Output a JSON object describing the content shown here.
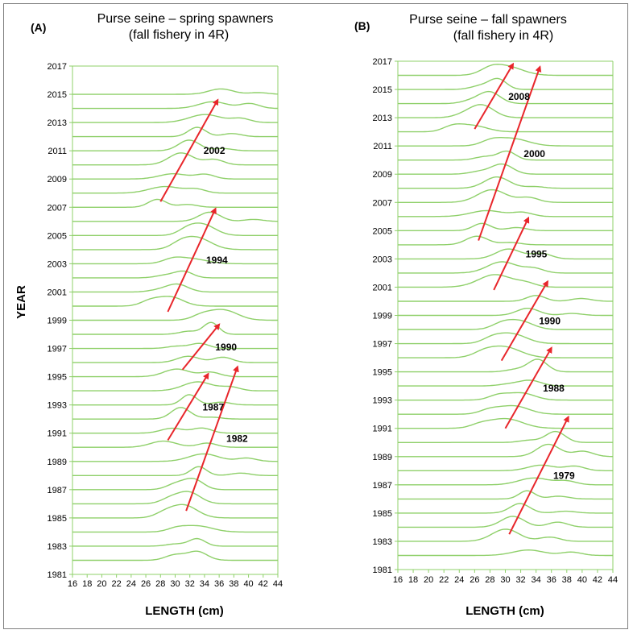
{
  "colors": {
    "ridge": "#8fd06a",
    "arrow": "#e8262b",
    "frame": "#7f7f7f",
    "text": "#000000"
  },
  "yaxis_label": "YEAR",
  "chart_data": [
    {
      "type": "ridgeline",
      "panel": "(A)",
      "title_line1": "Purse seine – spring spawners",
      "title_line2": "(fall fishery in 4R)",
      "xlabel": "LENGTH (cm)",
      "xlim": [
        16,
        44
      ],
      "xticks": [
        "16",
        "18",
        "20",
        "22",
        "24",
        "26",
        "28",
        "30",
        "32",
        "34",
        "36",
        "38",
        "40",
        "42",
        "44"
      ],
      "ylim": [
        1981,
        2017
      ],
      "yticks": [
        "1981",
        "1983",
        "1985",
        "1987",
        "1989",
        "1991",
        "1993",
        "1995",
        "1997",
        "1999",
        "2001",
        "2003",
        "2005",
        "2007",
        "2009",
        "2011",
        "2013",
        "2015",
        "2017"
      ],
      "years": [
        1982,
        1983,
        1984,
        1985,
        1986,
        1987,
        1988,
        1989,
        1990,
        1991,
        1992,
        1993,
        1994,
        1995,
        1996,
        1997,
        1998,
        1999,
        2000,
        2001,
        2002,
        2003,
        2004,
        2005,
        2006,
        2007,
        2008,
        2009,
        2010,
        2011,
        2012,
        2013,
        2014,
        2015
      ],
      "cohorts": [
        {
          "label": "1982",
          "start": [
            31.5,
            1985.5
          ],
          "end": [
            38.5,
            1995.7
          ]
        },
        {
          "label": "1987",
          "start": [
            29,
            1990.5
          ],
          "end": [
            34.5,
            1995.2
          ]
        },
        {
          "label": "1990",
          "start": [
            31,
            1995.5
          ],
          "end": [
            36,
            1998.7
          ]
        },
        {
          "label": "1994",
          "start": [
            29,
            1999.6
          ],
          "end": [
            35.5,
            2006.9
          ]
        },
        {
          "label": "2002",
          "start": [
            28,
            2007.4
          ],
          "end": [
            35.8,
            2014.6
          ]
        }
      ]
    },
    {
      "type": "ridgeline",
      "panel": "(B)",
      "title_line1": "Purse seine – fall spawners",
      "title_line2": "(fall fishery in 4R)",
      "xlabel": "LENGTH (cm)",
      "xlim": [
        16,
        44
      ],
      "xticks": [
        "16",
        "18",
        "20",
        "22",
        "24",
        "26",
        "28",
        "30",
        "32",
        "34",
        "36",
        "38",
        "40",
        "42",
        "44"
      ],
      "ylim": [
        1981,
        2017
      ],
      "yticks": [
        "1981",
        "1983",
        "1985",
        "1987",
        "1989",
        "1991",
        "1993",
        "1995",
        "1997",
        "1999",
        "2001",
        "2003",
        "2005",
        "2007",
        "2009",
        "2011",
        "2013",
        "2015",
        "2017"
      ],
      "years": [
        1982,
        1983,
        1984,
        1985,
        1986,
        1987,
        1988,
        1989,
        1990,
        1991,
        1992,
        1993,
        1994,
        1995,
        1996,
        1997,
        1998,
        1999,
        2000,
        2001,
        2002,
        2003,
        2004,
        2005,
        2006,
        2007,
        2008,
        2009,
        2010,
        2011,
        2012,
        2013,
        2014,
        2015,
        2016
      ],
      "cohorts": [
        {
          "label": "1979",
          "start": [
            30.5,
            1983.5
          ],
          "end": [
            38.2,
            1991.8
          ]
        },
        {
          "label": "1988",
          "start": [
            30,
            1991
          ],
          "end": [
            36,
            1996.7
          ]
        },
        {
          "label": "1990",
          "start": [
            29.5,
            1995.8
          ],
          "end": [
            35.5,
            2001.4
          ]
        },
        {
          "label": "1995",
          "start": [
            28.5,
            2000.8
          ],
          "end": [
            33,
            2005.9
          ]
        },
        {
          "label": "2000",
          "start": [
            26.5,
            2004.3
          ],
          "end": [
            34.5,
            2016.6
          ]
        },
        {
          "label": "2008",
          "start": [
            26,
            2012.2
          ],
          "end": [
            31,
            2016.8
          ]
        }
      ]
    }
  ]
}
